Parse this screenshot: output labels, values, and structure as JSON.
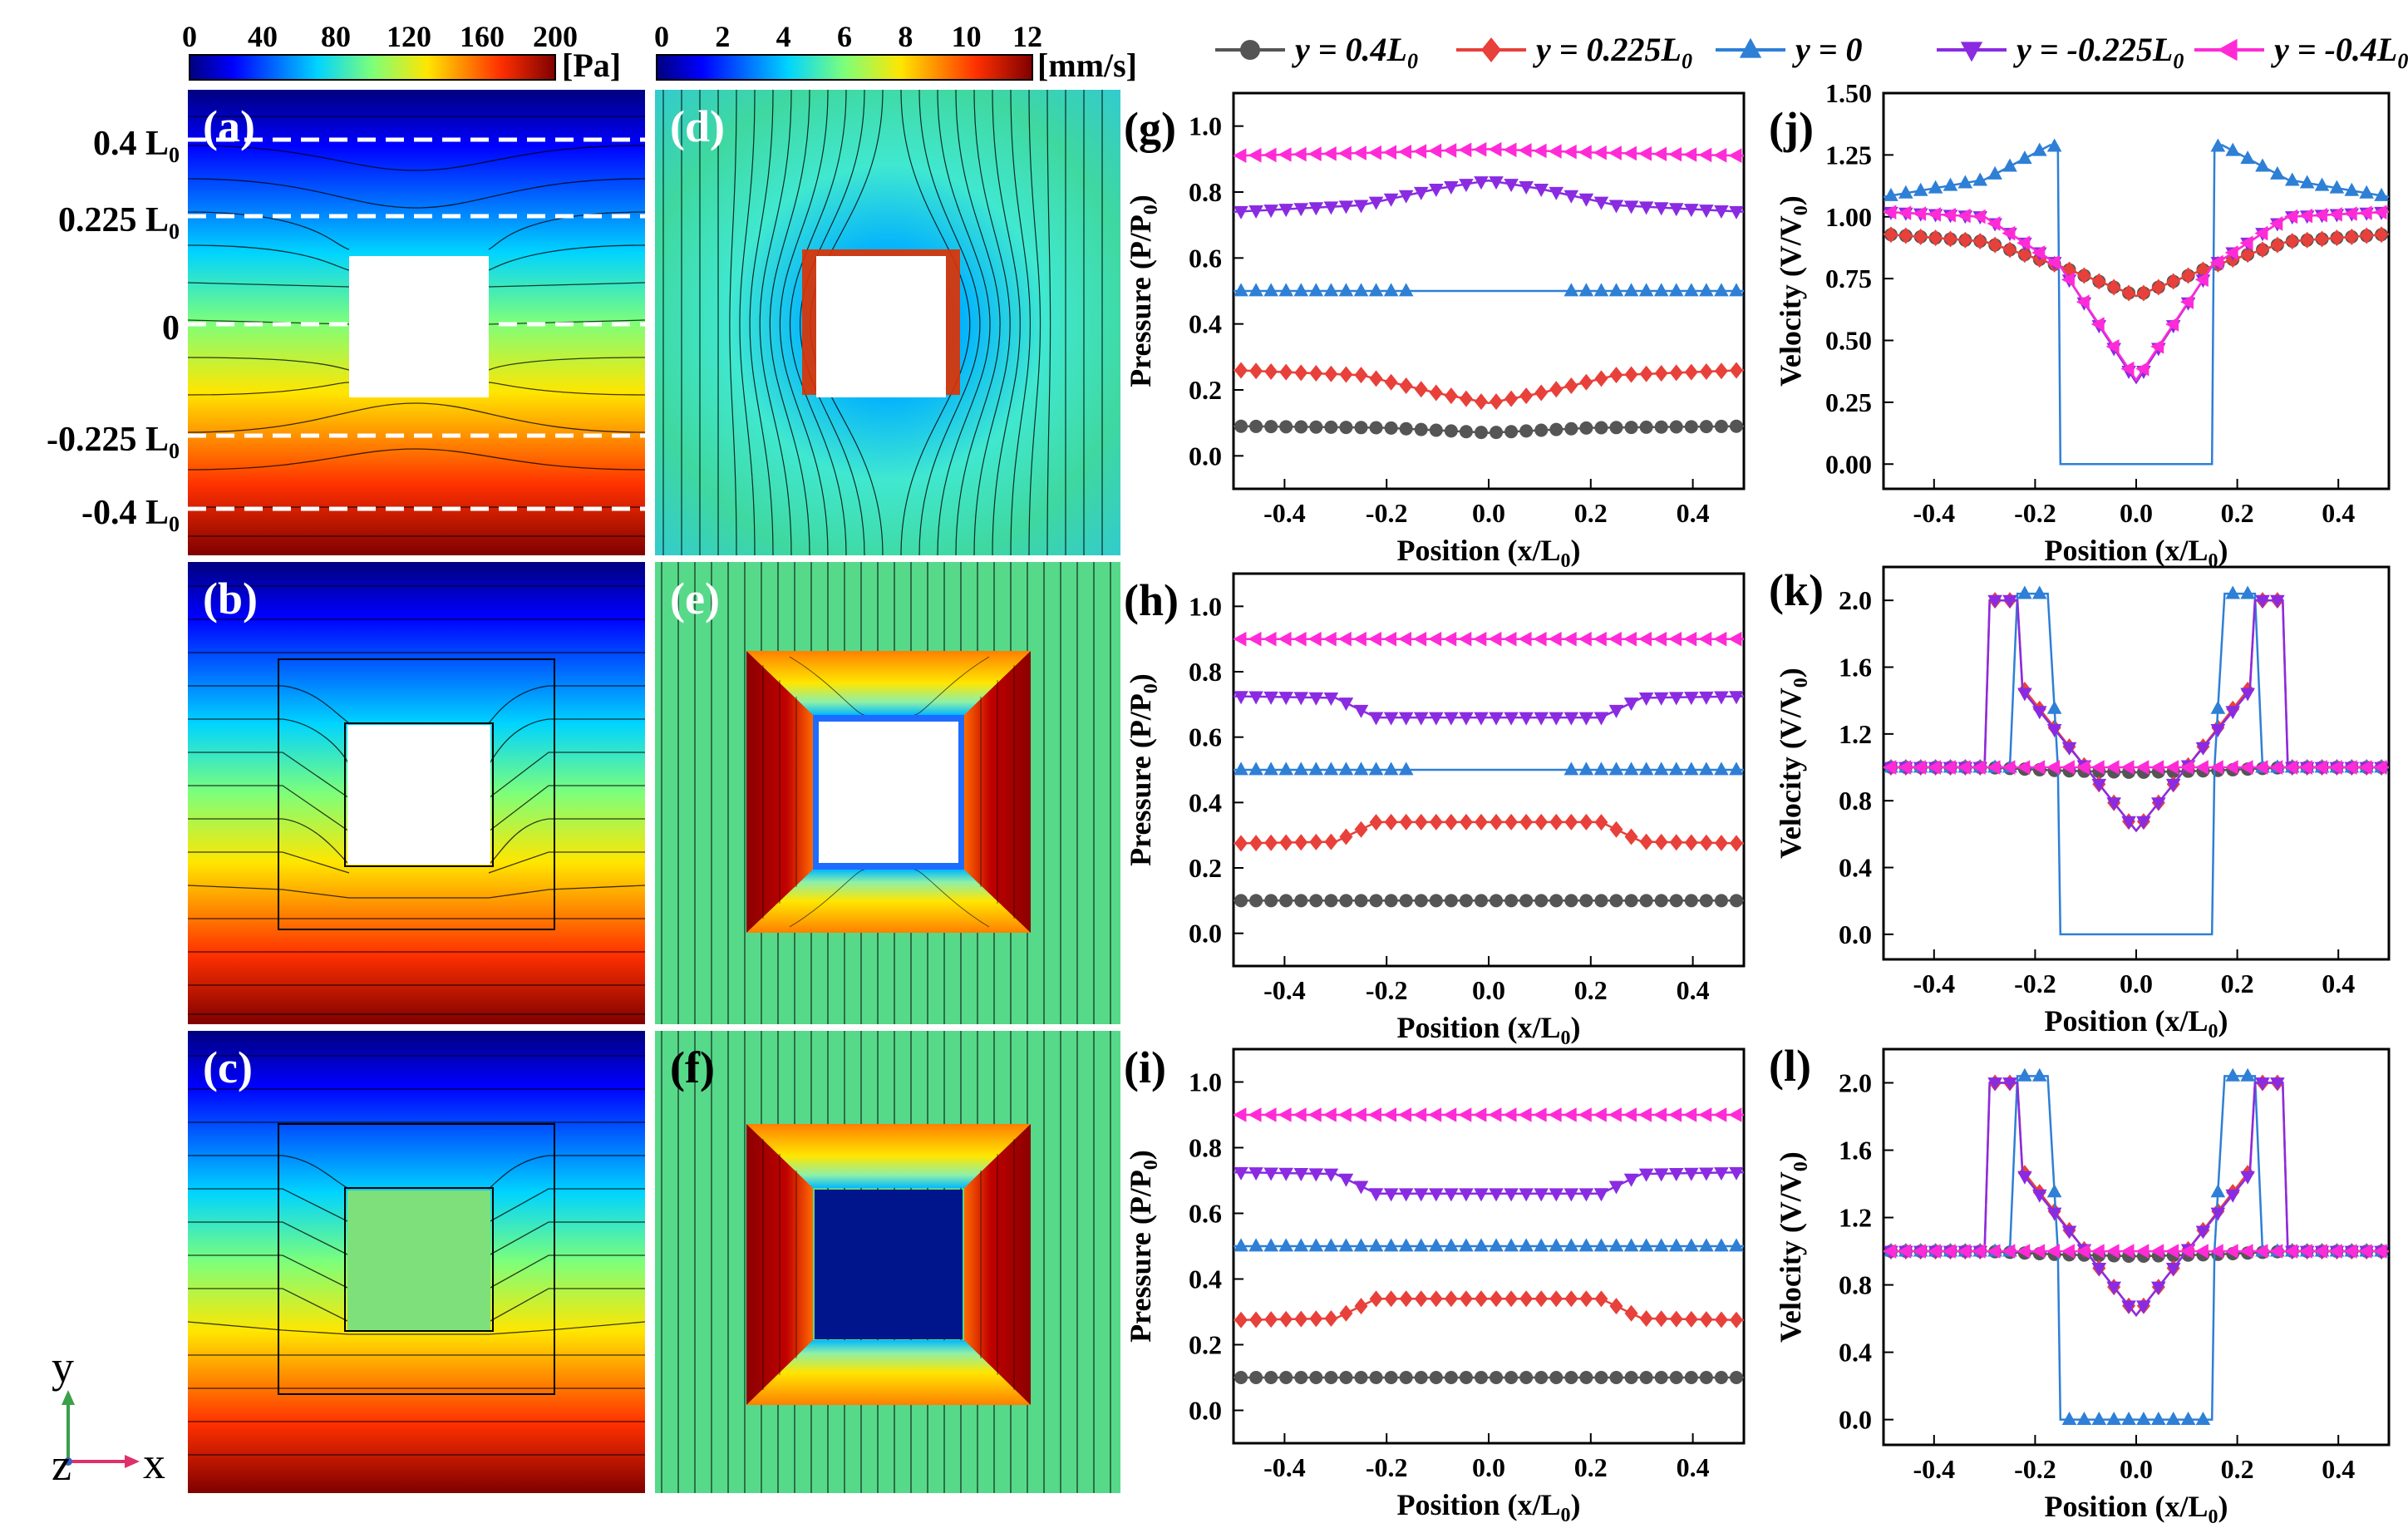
{
  "colorbars": {
    "pressure": {
      "ticks": [
        "0",
        "40",
        "80",
        "120",
        "160",
        "200"
      ],
      "unit": "[Pa]"
    },
    "velocity": {
      "ticks": [
        "0",
        "2",
        "4",
        "6",
        "8",
        "10",
        "12"
      ],
      "unit": "[mm/s]"
    }
  },
  "panel_labels": [
    "(a)",
    "(b)",
    "(c)",
    "(d)",
    "(e)",
    "(f)",
    "(g)",
    "(h)",
    "(i)",
    "(j)",
    "(k)",
    "(l)"
  ],
  "line_labels": [
    {
      "main": "0.4 L",
      "sub": "0"
    },
    {
      "main": "0.225 L",
      "sub": "0"
    },
    {
      "main": "0",
      "sub": ""
    },
    {
      "main": "-0.225 L",
      "sub": "0"
    },
    {
      "main": "-0.4 L",
      "sub": "0"
    }
  ],
  "axes_triad": {
    "y": "y",
    "z": "z",
    "x": "x"
  },
  "legend": [
    {
      "label": "y = 0.4L",
      "sub": "0",
      "color": "#555555",
      "marker": "circle"
    },
    {
      "label": "y = 0.225L",
      "sub": "0",
      "color": "#e8403a",
      "marker": "diamond"
    },
    {
      "label": "y = 0",
      "sub": "",
      "color": "#2e7fd6",
      "marker": "triangle-up"
    },
    {
      "label": "y = -0.225L",
      "sub": "0",
      "color": "#8a2be2",
      "marker": "triangle-down"
    },
    {
      "label": "y = -0.4L",
      "sub": "0",
      "color": "#ff2bd6",
      "marker": "triangle-left"
    }
  ],
  "chart_data": [
    {
      "id": "g",
      "type": "line",
      "xlabel": "Position (x/L",
      "xlabel_sub": "0",
      "ylabel": "Pressure (P/P",
      "ylabel_sub": "0",
      "xlim": [
        -0.5,
        0.5
      ],
      "ylim": [
        -0.1,
        1.1
      ],
      "xticks": [
        "-0.4",
        "-0.2",
        "0.0",
        "0.2",
        "0.4"
      ],
      "yticks": [
        "0.0",
        "0.2",
        "0.4",
        "0.6",
        "0.8",
        "1.0"
      ],
      "series": [
        {
          "points": [
            [
              -0.5,
              0.09
            ],
            [
              -0.2,
              0.085
            ],
            [
              0,
              0.07
            ],
            [
              0.2,
              0.085
            ],
            [
              0.5,
              0.09
            ]
          ]
        },
        {
          "points": [
            [
              -0.5,
              0.26
            ],
            [
              -0.25,
              0.245
            ],
            [
              -0.1,
              0.19
            ],
            [
              0,
              0.16
            ],
            [
              0.1,
              0.19
            ],
            [
              0.25,
              0.245
            ],
            [
              0.5,
              0.26
            ]
          ]
        },
        {
          "points": [
            [
              -0.5,
              0.5
            ],
            [
              0.5,
              0.5
            ]
          ]
        },
        {
          "points": [
            [
              -0.5,
              0.74
            ],
            [
              -0.25,
              0.76
            ],
            [
              -0.1,
              0.81
            ],
            [
              0,
              0.835
            ],
            [
              0.1,
              0.81
            ],
            [
              0.25,
              0.76
            ],
            [
              0.5,
              0.74
            ]
          ]
        },
        {
          "points": [
            [
              -0.5,
              0.91
            ],
            [
              -0.2,
              0.92
            ],
            [
              0,
              0.93
            ],
            [
              0.2,
              0.92
            ],
            [
              0.5,
              0.91
            ]
          ]
        }
      ]
    },
    {
      "id": "h",
      "type": "line",
      "xlabel": "Position (x/L",
      "xlabel_sub": "0",
      "ylabel": "Pressure (P/P",
      "ylabel_sub": "0",
      "xlim": [
        -0.5,
        0.5
      ],
      "ylim": [
        -0.1,
        1.1
      ],
      "xticks": [
        "-0.4",
        "-0.2",
        "0.0",
        "0.2",
        "0.4"
      ],
      "yticks": [
        "0.0",
        "0.2",
        "0.4",
        "0.6",
        "0.8",
        "1.0"
      ],
      "series": [
        {
          "points": [
            [
              -0.5,
              0.1
            ],
            [
              0.5,
              0.1
            ]
          ]
        },
        {
          "points": [
            [
              -0.5,
              0.275
            ],
            [
              -0.3,
              0.28
            ],
            [
              -0.22,
              0.34
            ],
            [
              0.22,
              0.34
            ],
            [
              0.3,
              0.28
            ],
            [
              0.5,
              0.275
            ]
          ]
        },
        {
          "points": [
            [
              -0.5,
              0.5
            ],
            [
              0.5,
              0.5
            ]
          ]
        },
        {
          "points": [
            [
              -0.5,
              0.725
            ],
            [
              -0.3,
              0.72
            ],
            [
              -0.22,
              0.66
            ],
            [
              0.22,
              0.66
            ],
            [
              0.3,
              0.72
            ],
            [
              0.5,
              0.725
            ]
          ]
        },
        {
          "points": [
            [
              -0.5,
              0.9
            ],
            [
              0.5,
              0.9
            ]
          ]
        }
      ]
    },
    {
      "id": "i",
      "type": "line",
      "xlabel": "Position (x/L",
      "xlabel_sub": "0",
      "ylabel": "Pressure (P/P",
      "ylabel_sub": "0",
      "xlim": [
        -0.5,
        0.5
      ],
      "ylim": [
        -0.1,
        1.1
      ],
      "xticks": [
        "-0.4",
        "-0.2",
        "0.0",
        "0.2",
        "0.4"
      ],
      "yticks": [
        "0.0",
        "0.2",
        "0.4",
        "0.6",
        "0.8",
        "1.0"
      ],
      "series": [
        {
          "points": [
            [
              -0.5,
              0.1
            ],
            [
              0.5,
              0.1
            ]
          ]
        },
        {
          "points": [
            [
              -0.5,
              0.275
            ],
            [
              -0.3,
              0.28
            ],
            [
              -0.22,
              0.34
            ],
            [
              0.22,
              0.34
            ],
            [
              0.3,
              0.28
            ],
            [
              0.5,
              0.275
            ]
          ]
        },
        {
          "points": [
            [
              -0.5,
              0.5
            ],
            [
              0.5,
              0.5
            ]
          ]
        },
        {
          "points": [
            [
              -0.5,
              0.725
            ],
            [
              -0.3,
              0.72
            ],
            [
              -0.22,
              0.66
            ],
            [
              0.22,
              0.66
            ],
            [
              0.3,
              0.72
            ],
            [
              0.5,
              0.725
            ]
          ]
        },
        {
          "points": [
            [
              -0.5,
              0.9
            ],
            [
              0.5,
              0.9
            ]
          ]
        }
      ]
    },
    {
      "id": "j",
      "type": "line",
      "xlabel": "Position (x/L",
      "xlabel_sub": "0",
      "ylabel": "Velocity (V/V",
      "ylabel_sub": "0",
      "xlim": [
        -0.5,
        0.5
      ],
      "ylim": [
        -0.1,
        1.5
      ],
      "xticks": [
        "-0.4",
        "-0.2",
        "0.0",
        "0.2",
        "0.4"
      ],
      "yticks": [
        "0.00",
        "0.25",
        "0.50",
        "0.75",
        "1.00",
        "1.25",
        "1.50"
      ],
      "series": [
        {
          "points": [
            [
              -0.5,
              0.93
            ],
            [
              -0.3,
              0.9
            ],
            [
              -0.15,
              0.8
            ],
            [
              0,
              0.68
            ],
            [
              0.15,
              0.8
            ],
            [
              0.3,
              0.9
            ],
            [
              0.5,
              0.93
            ]
          ]
        },
        {
          "points": [
            [
              -0.5,
              0.93
            ],
            [
              -0.3,
              0.9
            ],
            [
              -0.15,
              0.8
            ],
            [
              0,
              0.68
            ],
            [
              0.15,
              0.8
            ],
            [
              0.3,
              0.9
            ],
            [
              0.5,
              0.93
            ]
          ]
        },
        {
          "points": [
            [
              -0.5,
              1.08
            ],
            [
              -0.3,
              1.15
            ],
            [
              -0.17,
              1.29
            ],
            [
              -0.155,
              1.28
            ],
            [
              -0.15,
              0
            ],
            [
              0.15,
              0
            ],
            [
              0.155,
              1.28
            ],
            [
              0.17,
              1.29
            ],
            [
              0.3,
              1.15
            ],
            [
              0.5,
              1.08
            ]
          ]
        },
        {
          "points": [
            [
              -0.5,
              1.02
            ],
            [
              -0.3,
              1.0
            ],
            [
              -0.15,
              0.8
            ],
            [
              0,
              0.33
            ],
            [
              0.15,
              0.8
            ],
            [
              0.3,
              1.0
            ],
            [
              0.5,
              1.02
            ]
          ]
        },
        {
          "points": [
            [
              -0.5,
              1.02
            ],
            [
              -0.3,
              1.0
            ],
            [
              -0.15,
              0.8
            ],
            [
              0,
              0.34
            ],
            [
              0.15,
              0.8
            ],
            [
              0.3,
              1.0
            ],
            [
              0.5,
              1.02
            ]
          ]
        }
      ]
    },
    {
      "id": "k",
      "type": "line",
      "xlabel": "Position (x/L",
      "xlabel_sub": "0",
      "ylabel": "Velocity (V/V",
      "ylabel_sub": "0",
      "xlim": [
        -0.5,
        0.5
      ],
      "ylim": [
        -0.15,
        2.2
      ],
      "xticks": [
        "-0.4",
        "-0.2",
        "0.0",
        "0.2",
        "0.4"
      ],
      "yticks": [
        "0.0",
        "0.4",
        "0.8",
        "1.2",
        "1.6",
        "2.0"
      ],
      "series": [
        {
          "points": [
            [
              -0.5,
              1.0
            ],
            [
              -0.3,
              1.0
            ],
            [
              -0.15,
              0.98
            ],
            [
              0,
              0.97
            ],
            [
              0.15,
              0.98
            ],
            [
              0.3,
              1.0
            ],
            [
              0.5,
              1.0
            ]
          ]
        },
        {
          "points": [
            [
              -0.5,
              1.0
            ],
            [
              -0.3,
              1.0
            ],
            [
              -0.29,
              2.0
            ],
            [
              -0.235,
              2.0
            ],
            [
              -0.225,
              1.48
            ],
            [
              -0.1,
              1.0
            ],
            [
              0,
              0.62
            ],
            [
              0.1,
              1.0
            ],
            [
              0.225,
              1.48
            ],
            [
              0.235,
              2.0
            ],
            [
              0.29,
              2.0
            ],
            [
              0.3,
              1.0
            ],
            [
              0.5,
              1.0
            ]
          ]
        },
        {
          "points": [
            [
              -0.5,
              1.0
            ],
            [
              -0.25,
              1.0
            ],
            [
              -0.235,
              2.04
            ],
            [
              -0.175,
              2.04
            ],
            [
              -0.155,
              1.0
            ],
            [
              -0.15,
              0
            ],
            [
              0.15,
              0
            ],
            [
              0.155,
              1.0
            ],
            [
              0.175,
              2.04
            ],
            [
              0.235,
              2.04
            ],
            [
              0.25,
              1.0
            ],
            [
              0.5,
              1.0
            ]
          ]
        },
        {
          "points": [
            [
              -0.5,
              1.0
            ],
            [
              -0.3,
              1.0
            ],
            [
              -0.29,
              2.0
            ],
            [
              -0.235,
              2.0
            ],
            [
              -0.225,
              1.46
            ],
            [
              -0.1,
              1.0
            ],
            [
              0,
              0.62
            ],
            [
              0.1,
              1.0
            ],
            [
              0.225,
              1.46
            ],
            [
              0.235,
              2.0
            ],
            [
              0.29,
              2.0
            ],
            [
              0.3,
              1.0
            ],
            [
              0.5,
              1.0
            ]
          ]
        },
        {
          "points": [
            [
              -0.5,
              1.0
            ],
            [
              0.5,
              1.0
            ]
          ]
        }
      ]
    },
    {
      "id": "l",
      "type": "line",
      "xlabel": "Position (x/L",
      "xlabel_sub": "0",
      "ylabel": "Velocity (V/V",
      "ylabel_sub": "0",
      "xlim": [
        -0.5,
        0.5
      ],
      "ylim": [
        -0.15,
        2.2
      ],
      "xticks": [
        "-0.4",
        "-0.2",
        "0.0",
        "0.2",
        "0.4"
      ],
      "yticks": [
        "0.0",
        "0.4",
        "0.8",
        "1.2",
        "1.6",
        "2.0"
      ],
      "series": [
        {
          "points": [
            [
              -0.5,
              1.0
            ],
            [
              -0.3,
              1.0
            ],
            [
              -0.15,
              0.98
            ],
            [
              0,
              0.97
            ],
            [
              0.15,
              0.98
            ],
            [
              0.3,
              1.0
            ],
            [
              0.5,
              1.0
            ]
          ]
        },
        {
          "points": [
            [
              -0.5,
              1.0
            ],
            [
              -0.3,
              1.0
            ],
            [
              -0.29,
              2.0
            ],
            [
              -0.235,
              2.0
            ],
            [
              -0.225,
              1.48
            ],
            [
              -0.1,
              1.0
            ],
            [
              0,
              0.62
            ],
            [
              0.1,
              1.0
            ],
            [
              0.225,
              1.48
            ],
            [
              0.235,
              2.0
            ],
            [
              0.29,
              2.0
            ],
            [
              0.3,
              1.0
            ],
            [
              0.5,
              1.0
            ]
          ]
        },
        {
          "points": [
            [
              -0.5,
              1.0
            ],
            [
              -0.25,
              1.0
            ],
            [
              -0.235,
              2.04
            ],
            [
              -0.175,
              2.04
            ],
            [
              -0.155,
              1.0
            ],
            [
              -0.15,
              0
            ],
            [
              0.15,
              0
            ],
            [
              0.155,
              1.0
            ],
            [
              0.175,
              2.04
            ],
            [
              0.235,
              2.04
            ],
            [
              0.25,
              1.0
            ],
            [
              0.5,
              1.0
            ]
          ]
        },
        {
          "points": [
            [
              -0.5,
              1.0
            ],
            [
              -0.3,
              1.0
            ],
            [
              -0.29,
              2.0
            ],
            [
              -0.235,
              2.0
            ],
            [
              -0.225,
              1.46
            ],
            [
              -0.1,
              1.0
            ],
            [
              0,
              0.62
            ],
            [
              0.1,
              1.0
            ],
            [
              0.225,
              1.46
            ],
            [
              0.235,
              2.0
            ],
            [
              0.29,
              2.0
            ],
            [
              0.3,
              1.0
            ],
            [
              0.5,
              1.0
            ]
          ]
        },
        {
          "points": [
            [
              -0.5,
              1.0
            ],
            [
              0.5,
              1.0
            ]
          ]
        }
      ]
    }
  ]
}
